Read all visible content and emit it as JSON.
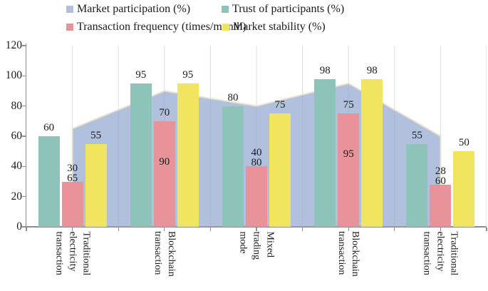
{
  "figure": {
    "kind": "grouped bar chart with overlaid area series",
    "background": "#ffffff"
  },
  "legend": {
    "items": [
      {
        "label": "Market participation (%)",
        "color": "#B2C0DC"
      },
      {
        "label": "Trust of participants (%)",
        "color": "#8EC3B9"
      },
      {
        "label": "Transaction frequency (times/month)",
        "color": "#E8929A"
      },
      {
        "label": "Market stability (%)",
        "color": "#F1E45F"
      }
    ]
  },
  "chart_data": {
    "type": "bar",
    "subtype": "bar+area",
    "categories": [
      "Traditional electricity transaction",
      "Blockchain transaction",
      "Mixed trading mode",
      "Blockchain transaction",
      "Traditional electricity transaction"
    ],
    "series": [
      {
        "name": "Market participation (%)",
        "chart": "area",
        "color": "#93A7CF",
        "fill_opacity": 0.72,
        "outline_color": "#E7E2CD",
        "values": [
          65,
          90,
          80,
          95,
          60
        ]
      },
      {
        "name": "Trust of participants (%)",
        "chart": "bar",
        "color": "#8EC3B9",
        "values": [
          60,
          95,
          80,
          98,
          55
        ]
      },
      {
        "name": "Transaction frequency (times/month)",
        "chart": "bar",
        "color": "#E8929A",
        "values": [
          30,
          70,
          40,
          75,
          28
        ]
      },
      {
        "name": "Market stability (%)",
        "chart": "bar",
        "color": "#F1E45F",
        "values": [
          55,
          95,
          75,
          98,
          50
        ]
      }
    ],
    "title": "",
    "xlabel": "",
    "ylabel": "",
    "ylim": [
      0,
      120
    ],
    "yticks": [
      0,
      20,
      40,
      60,
      80,
      100,
      120
    ],
    "grid": "vertical light gray",
    "legend_position": "top",
    "value_labels": true,
    "axis_color": "#8e8e8e",
    "gridline_color": "#dcdcdc",
    "label_text_color": "#1b1b1b"
  }
}
